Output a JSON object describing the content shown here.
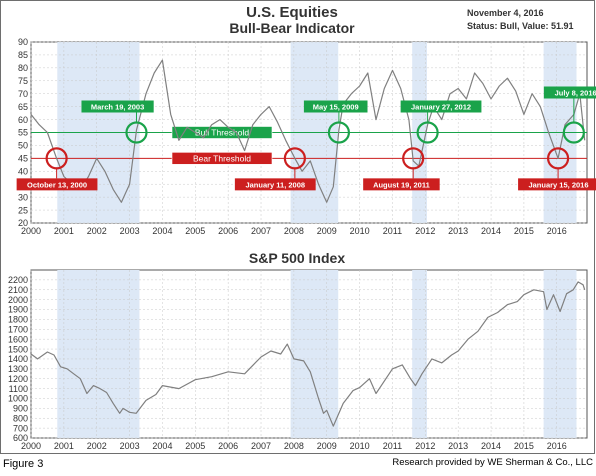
{
  "caption": "Figure 3",
  "credit": "Research provided by WE Sherman & Co., LLC",
  "colors": {
    "bull": "#1aa34a",
    "bear": "#cc1f1f",
    "band": "#dde8f6",
    "line": "#808080",
    "grid": "#c8c8c8"
  },
  "chart_data": [
    {
      "type": "line",
      "title": "U.S. Equities",
      "subtitle": "Bull-Bear Indicator",
      "date_label": "November 4, 2016",
      "status_label": "Status: Bull, Value: 51.91",
      "x_ticks": [
        "2000",
        "2001",
        "2002",
        "2003",
        "2004",
        "2005",
        "2006",
        "2007",
        "2008",
        "2009",
        "2010",
        "2011",
        "2012",
        "2013",
        "2014",
        "2015",
        "2016"
      ],
      "y_ticks": [
        20,
        25,
        30,
        35,
        40,
        45,
        50,
        55,
        60,
        65,
        70,
        75,
        80,
        85,
        90
      ],
      "xlim": [
        2000.0,
        2016.92
      ],
      "ylim": [
        20,
        90
      ],
      "grid": true,
      "thresholds": [
        {
          "label": "Bull Threshold",
          "value": 55
        },
        {
          "label": "Bear Threshold",
          "value": 45
        }
      ],
      "shaded_periods": [
        [
          2000.8,
          2003.3
        ],
        [
          2007.9,
          2009.35
        ],
        [
          2011.6,
          2012.05
        ],
        [
          2015.6,
          2016.6
        ]
      ],
      "annotations": [
        {
          "label": "March 19, 2003",
          "kind": "bull",
          "date": 2003.21,
          "value": 55
        },
        {
          "label": "May 15, 2009",
          "kind": "bull",
          "date": 2009.37,
          "value": 55
        },
        {
          "label": "January 27, 2012",
          "kind": "bull",
          "date": 2012.07,
          "value": 55
        },
        {
          "label": "July 8, 2016",
          "kind": "bull",
          "date": 2016.52,
          "value": 55
        },
        {
          "label": "October 13, 2000",
          "kind": "bear",
          "date": 2000.78,
          "value": 45
        },
        {
          "label": "January 11, 2008",
          "kind": "bear",
          "date": 2008.03,
          "value": 45
        },
        {
          "label": "August 19, 2011",
          "kind": "bear",
          "date": 2011.63,
          "value": 45
        },
        {
          "label": "January 15, 2016",
          "kind": "bear",
          "date": 2016.04,
          "value": 45
        }
      ],
      "series": [
        {
          "x": [
            2000.0,
            2000.25,
            2000.5,
            2000.78,
            2001.0,
            2001.25,
            2001.5,
            2001.75,
            2002.0,
            2002.25,
            2002.5,
            2002.75,
            2003.0,
            2003.21,
            2003.5,
            2003.75,
            2004.0,
            2004.25,
            2004.5,
            2004.75,
            2005.0,
            2005.25,
            2005.5,
            2005.75,
            2006.0,
            2006.25,
            2006.5,
            2006.75,
            2007.0,
            2007.25,
            2007.5,
            2007.75,
            2008.03,
            2008.25,
            2008.5,
            2008.75,
            2009.0,
            2009.2,
            2009.37,
            2009.5,
            2009.75,
            2010.0,
            2010.25,
            2010.5,
            2010.75,
            2011.0,
            2011.25,
            2011.5,
            2011.63,
            2011.8,
            2012.07,
            2012.25,
            2012.5,
            2012.75,
            2013.0,
            2013.25,
            2013.5,
            2013.75,
            2014.0,
            2014.25,
            2014.5,
            2014.75,
            2015.0,
            2015.25,
            2015.5,
            2015.75,
            2016.04,
            2016.25,
            2016.52,
            2016.7,
            2016.85
          ],
          "values": [
            62,
            58,
            55,
            45,
            38,
            35,
            33,
            38,
            45,
            40,
            33,
            28,
            35,
            56,
            70,
            78,
            83,
            62,
            52,
            57,
            55,
            53,
            58,
            60,
            57,
            55,
            48,
            58,
            62,
            65,
            59,
            52,
            45,
            40,
            44,
            35,
            28,
            34,
            56,
            66,
            70,
            73,
            78,
            60,
            72,
            79,
            72,
            60,
            44,
            42,
            58,
            65,
            60,
            70,
            72,
            68,
            78,
            74,
            68,
            73,
            76,
            71,
            62,
            70,
            65,
            55,
            45,
            58,
            62,
            70,
            52
          ]
        }
      ]
    },
    {
      "type": "line",
      "title": "S&P 500 Index",
      "x_ticks": [
        "2000",
        "2001",
        "2002",
        "2003",
        "2004",
        "2005",
        "2006",
        "2007",
        "2008",
        "2009",
        "2010",
        "2011",
        "2012",
        "2013",
        "2014",
        "2015",
        "2016"
      ],
      "y_ticks": [
        600,
        700,
        800,
        900,
        1000,
        1100,
        1200,
        1300,
        1400,
        1500,
        1600,
        1700,
        1800,
        1900,
        2000,
        2100,
        2200
      ],
      "xlim": [
        2000.0,
        2016.92
      ],
      "ylim": [
        600,
        2300
      ],
      "grid": true,
      "shaded_periods": [
        [
          2000.8,
          2003.3
        ],
        [
          2007.9,
          2009.35
        ],
        [
          2011.6,
          2012.05
        ],
        [
          2015.6,
          2016.6
        ]
      ],
      "series": [
        {
          "x": [
            2000.0,
            2000.2,
            2000.5,
            2000.7,
            2000.9,
            2001.1,
            2001.3,
            2001.5,
            2001.7,
            2001.9,
            2002.1,
            2002.3,
            2002.5,
            2002.7,
            2002.8,
            2003.0,
            2003.2,
            2003.5,
            2003.8,
            2004.0,
            2004.5,
            2005.0,
            2005.5,
            2006.0,
            2006.5,
            2007.0,
            2007.3,
            2007.6,
            2007.8,
            2008.0,
            2008.3,
            2008.5,
            2008.75,
            2008.9,
            2009.0,
            2009.2,
            2009.5,
            2009.8,
            2010.0,
            2010.3,
            2010.5,
            2010.8,
            2011.0,
            2011.3,
            2011.55,
            2011.7,
            2011.9,
            2012.2,
            2012.5,
            2012.8,
            2013.0,
            2013.3,
            2013.6,
            2013.9,
            2014.2,
            2014.5,
            2014.8,
            2015.0,
            2015.3,
            2015.6,
            2015.7,
            2015.9,
            2016.1,
            2016.3,
            2016.5,
            2016.65,
            2016.8,
            2016.85
          ],
          "values": [
            1450,
            1400,
            1470,
            1440,
            1320,
            1300,
            1250,
            1200,
            1050,
            1130,
            1100,
            1060,
            950,
            850,
            900,
            860,
            850,
            980,
            1040,
            1130,
            1100,
            1190,
            1220,
            1270,
            1250,
            1420,
            1480,
            1450,
            1550,
            1400,
            1380,
            1270,
            1000,
            850,
            880,
            720,
            950,
            1080,
            1110,
            1200,
            1050,
            1200,
            1300,
            1340,
            1200,
            1130,
            1250,
            1400,
            1360,
            1440,
            1480,
            1600,
            1680,
            1820,
            1870,
            1950,
            1980,
            2050,
            2100,
            2080,
            1900,
            2050,
            1880,
            2060,
            2100,
            2180,
            2150,
            2100
          ]
        }
      ]
    }
  ]
}
